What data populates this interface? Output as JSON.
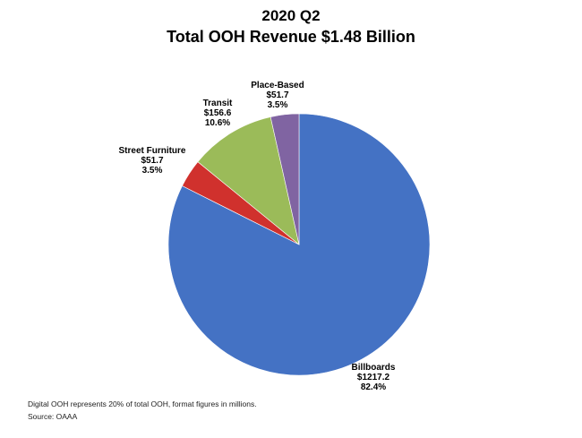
{
  "chart_data": {
    "type": "pie",
    "title": "2020 Q2",
    "subtitle": "Total OOH Revenue $1.48 Billion",
    "slices": [
      {
        "name": "Billboards",
        "value": 1217.2,
        "value_label": "$1217.2",
        "percent_label": "82.4%",
        "color": "#4472C4"
      },
      {
        "name": "Street Furniture",
        "value": 51.7,
        "value_label": "$51.7",
        "percent_label": "3.5%",
        "color": "#D0312D"
      },
      {
        "name": "Transit",
        "value": 156.6,
        "value_label": "$156.6",
        "percent_label": "10.6%",
        "color": "#9BBB59"
      },
      {
        "name": "Place-Based",
        "value": 51.7,
        "value_label": "$51.7",
        "percent_label": "3.5%",
        "color": "#8064A2"
      }
    ]
  },
  "notes": {
    "footnote": "Digital OOH represents 20% of total OOH, format figures in millions.",
    "source": "Source: OAAA"
  }
}
